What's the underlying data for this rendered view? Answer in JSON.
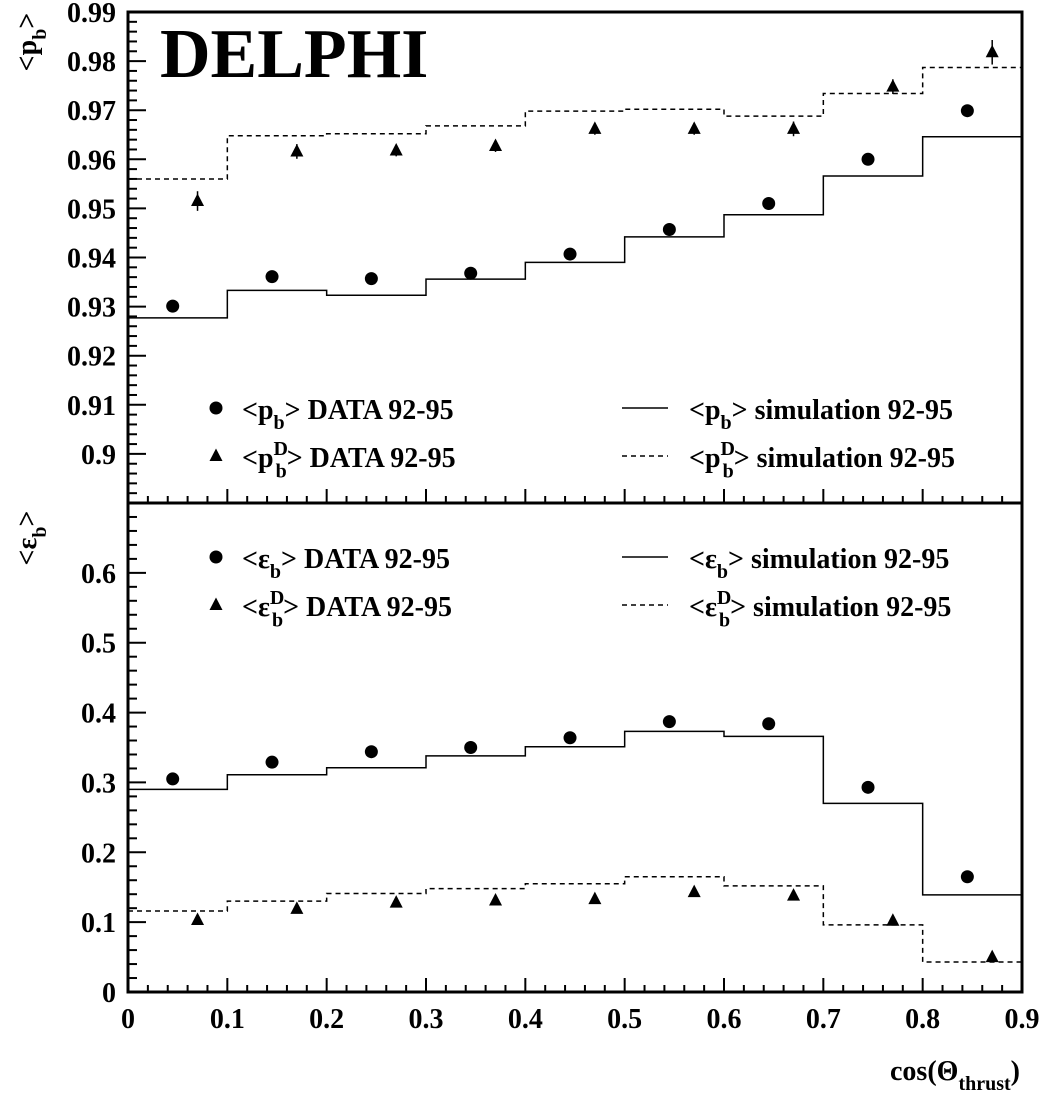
{
  "figure": {
    "label": "DELPHI"
  },
  "chart_data": [
    {
      "type": "scatter",
      "panel": "top",
      "ylabel": "<p_b>",
      "xlabel": "cos(Θ_thrust)",
      "xlim": [
        0,
        0.9
      ],
      "ylim": [
        0.89,
        0.99
      ],
      "yticks": [
        "0.9",
        "0.91",
        "0.92",
        "0.93",
        "0.94",
        "0.95",
        "0.96",
        "0.97",
        "0.98",
        "0.99"
      ],
      "bin_edges": [
        0,
        0.1,
        0.2,
        0.3,
        0.4,
        0.5,
        0.6,
        0.7,
        0.8,
        0.9
      ],
      "legend": [
        {
          "symbol": "circle",
          "main": "<p",
          "sub": "b",
          "sup": "",
          "rest": "> DATA 92-95"
        },
        {
          "symbol": "triangle",
          "main": "<p",
          "sub": "b",
          "sup": "D",
          "rest": "> DATA 92-95"
        },
        {
          "symbol": "solid",
          "main": "<p",
          "sub": "b",
          "sup": "",
          "rest": "> simulation 92-95"
        },
        {
          "symbol": "dashed",
          "main": "<p",
          "sub": "b",
          "sup": "D",
          "rest": "> simulation 92-95"
        }
      ],
      "series": [
        {
          "kind": "points",
          "marker": "circle",
          "x": [
            0.045,
            0.145,
            0.245,
            0.345,
            0.445,
            0.545,
            0.645,
            0.745,
            0.845
          ],
          "values": [
            0.9301,
            0.9361,
            0.9357,
            0.9368,
            0.9407,
            0.9457,
            0.951,
            0.96,
            0.9699
          ]
        },
        {
          "kind": "points",
          "marker": "triangle",
          "x": [
            0.07,
            0.17,
            0.27,
            0.37,
            0.47,
            0.57,
            0.67,
            0.77,
            0.87
          ],
          "values": [
            0.9515,
            0.9616,
            0.9618,
            0.9627,
            0.9662,
            0.9662,
            0.9662,
            0.9748,
            0.9818
          ],
          "errors": [
            0.002,
            0.0015,
            0.0012,
            0.0012,
            0.0012,
            0.0012,
            0.0015,
            0.0015,
            0.0025
          ]
        },
        {
          "kind": "step",
          "style": "solid",
          "values": [
            0.9277,
            0.9333,
            0.9323,
            0.9356,
            0.939,
            0.9442,
            0.9487,
            0.9566,
            0.9646
          ]
        },
        {
          "kind": "step",
          "style": "dashed",
          "values": [
            0.956,
            0.9648,
            0.9652,
            0.9668,
            0.9698,
            0.9702,
            0.9688,
            0.9734,
            0.9787
          ]
        }
      ]
    },
    {
      "type": "scatter",
      "panel": "bottom",
      "ylabel": "<ε_b>",
      "xlabel": "cos(Θ_thrust)",
      "xlim": [
        0,
        0.9
      ],
      "ylim": [
        0,
        0.7
      ],
      "yticks": [
        "0",
        "0.1",
        "0.2",
        "0.3",
        "0.4",
        "0.5",
        "0.6"
      ],
      "xticks": [
        "0",
        "0.1",
        "0.2",
        "0.3",
        "0.4",
        "0.5",
        "0.6",
        "0.7",
        "0.8",
        "0.9"
      ],
      "bin_edges": [
        0,
        0.1,
        0.2,
        0.3,
        0.4,
        0.5,
        0.6,
        0.7,
        0.8,
        0.9
      ],
      "legend": [
        {
          "symbol": "circle",
          "main": "<ε",
          "sub": "b",
          "sup": "",
          "rest": "> DATA 92-95"
        },
        {
          "symbol": "triangle",
          "main": "<ε",
          "sub": "b",
          "sup": "D",
          "rest": "> DATA 92-95"
        },
        {
          "symbol": "solid",
          "main": "<ε",
          "sub": "b",
          "sup": "",
          "rest": "> simulation 92-95"
        },
        {
          "symbol": "dashed",
          "main": "<ε",
          "sub": "b",
          "sup": "D",
          "rest": "> simulation 92-95"
        }
      ],
      "series": [
        {
          "kind": "points",
          "marker": "circle",
          "x": [
            0.045,
            0.145,
            0.245,
            0.345,
            0.445,
            0.545,
            0.645,
            0.745,
            0.845
          ],
          "values": [
            0.305,
            0.329,
            0.344,
            0.35,
            0.364,
            0.387,
            0.384,
            0.293,
            0.165
          ]
        },
        {
          "kind": "points",
          "marker": "triangle",
          "x": [
            0.07,
            0.17,
            0.27,
            0.37,
            0.47,
            0.57,
            0.67,
            0.77,
            0.87
          ],
          "values": [
            0.103,
            0.119,
            0.128,
            0.131,
            0.133,
            0.143,
            0.138,
            0.102,
            0.05
          ]
        },
        {
          "kind": "step",
          "style": "solid",
          "values": [
            0.29,
            0.311,
            0.321,
            0.338,
            0.351,
            0.373,
            0.366,
            0.27,
            0.139
          ]
        },
        {
          "kind": "step",
          "style": "dashed",
          "values": [
            0.116,
            0.13,
            0.141,
            0.148,
            0.155,
            0.165,
            0.152,
            0.096,
            0.043
          ]
        }
      ]
    }
  ]
}
